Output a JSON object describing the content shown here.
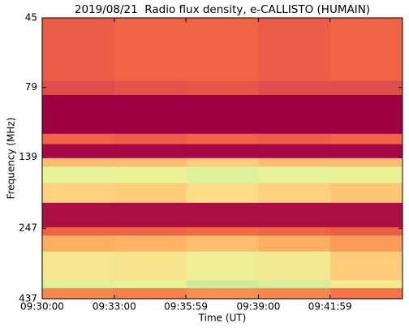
{
  "chart_data": {
    "type": "heatmap",
    "title": "2019/08/21  Radio flux density, e-CALLISTO (HUMAIN)",
    "xlabel": "Time (UT)",
    "ylabel": "Frequency (MHz)",
    "yscale": "log",
    "y_inverted": true,
    "ylim": [
      45,
      437
    ],
    "yticks": [
      45,
      79,
      139,
      247,
      437
    ],
    "xlim": [
      "09:30:00",
      "09:45:00"
    ],
    "xticks": [
      "09:30:00",
      "09:33:00",
      "09:35:59",
      "09:39:00",
      "09:41:59"
    ],
    "x_edges": [
      "09:30:00",
      "09:33:00",
      "09:36:00",
      "09:39:00",
      "09:42:00",
      "09:45:00"
    ],
    "y_edges": [
      45,
      75,
      84,
      115,
      125,
      140,
      150,
      171,
      201,
      245,
      262,
      298,
      376,
      401,
      437
    ],
    "colormap": [
      "#9e0142",
      "#d53e4f",
      "#f46d43",
      "#fdae61",
      "#fee08b",
      "#e6f598",
      "#abdda4"
    ],
    "values": [
      [
        0.28,
        0.3,
        0.3,
        0.28,
        0.3
      ],
      [
        0.22,
        0.24,
        0.25,
        0.22,
        0.22
      ],
      [
        0.0,
        0.0,
        0.0,
        0.0,
        0.0
      ],
      [
        0.3,
        0.28,
        0.3,
        0.28,
        0.3
      ],
      [
        0.02,
        0.02,
        0.02,
        0.02,
        0.02
      ],
      [
        0.55,
        0.55,
        0.6,
        0.55,
        0.55
      ],
      [
        0.82,
        0.8,
        0.86,
        0.82,
        0.8
      ],
      [
        0.62,
        0.6,
        0.66,
        0.62,
        0.58
      ],
      [
        0.04,
        0.04,
        0.04,
        0.04,
        0.04
      ],
      [
        0.3,
        0.3,
        0.32,
        0.3,
        0.28
      ],
      [
        0.5,
        0.52,
        0.55,
        0.5,
        0.45
      ],
      [
        0.72,
        0.7,
        0.78,
        0.74,
        0.6
      ],
      [
        0.86,
        0.84,
        0.9,
        0.88,
        0.75
      ],
      [
        0.4,
        0.38,
        0.42,
        0.4,
        0.35
      ]
    ]
  }
}
